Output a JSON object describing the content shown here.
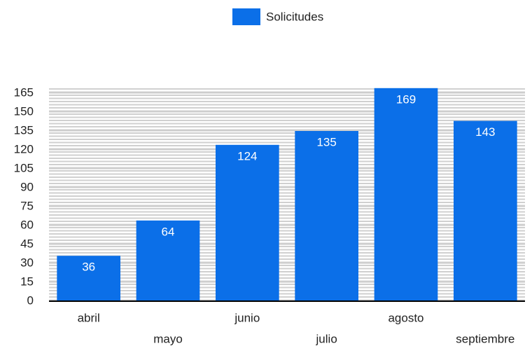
{
  "chart_data": {
    "type": "bar",
    "categories": [
      "abril",
      "mayo",
      "junio",
      "julio",
      "agosto",
      "septiembre"
    ],
    "series": [
      {
        "name": "Solicitudes",
        "color": "#0b6fe8",
        "values": [
          36,
          64,
          124,
          135,
          169,
          143
        ]
      }
    ],
    "ylim": [
      0,
      170
    ],
    "yticks": [
      0,
      15,
      30,
      45,
      60,
      75,
      90,
      105,
      120,
      135,
      150,
      165
    ],
    "grid": true,
    "legend": "top"
  }
}
